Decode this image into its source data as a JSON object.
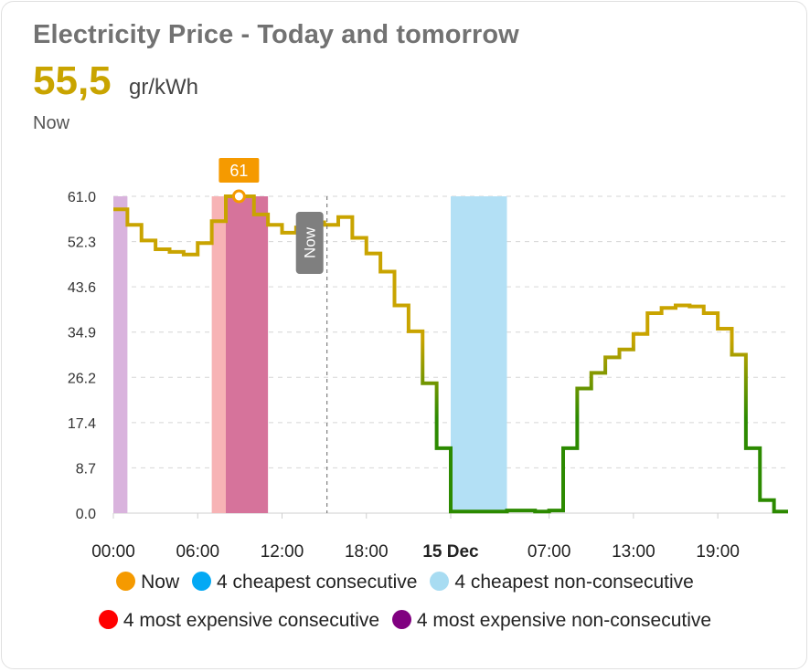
{
  "header": {
    "title": "Electricity Price - Today and tomorrow",
    "current_value": "55,5",
    "unit": "gr/kWh",
    "caption": "Now"
  },
  "chart_data": {
    "type": "line",
    "step": true,
    "title": "Electricity Price - Today and tomorrow",
    "ylim": [
      0,
      61
    ],
    "y_ticks": [
      "61.0",
      "52.3",
      "43.6",
      "34.9",
      "26.2",
      "17.4",
      "8.7",
      "0.0"
    ],
    "x_ticks": [
      "00:00",
      "06:00",
      "12:00",
      "18:00",
      "15 Dec",
      "07:00",
      "13:00",
      "19:00"
    ],
    "hours": 48,
    "series": [
      {
        "values": [
          58.5,
          55.5,
          52.5,
          50.8,
          50.3,
          49.8,
          52.0,
          56.2,
          61.0,
          61.0,
          57.5,
          55.5,
          54.0,
          55.0,
          56.0,
          55.5,
          57.0,
          53.0,
          50.0,
          46.5,
          40.0,
          35.0,
          25.0,
          12.5,
          0.3,
          0.3,
          0.3,
          0.3,
          0.5,
          0.5,
          0.3,
          0.5,
          12.5,
          24.0,
          27.0,
          30.0,
          31.5,
          34.5,
          38.5,
          39.5,
          40.0,
          39.8,
          38.5,
          35.5,
          30.5,
          12.5,
          2.5,
          0.3
        ]
      }
    ],
    "max_label": "61",
    "now_label": "Now",
    "now_hour": 15.2,
    "max_hour": 9.0,
    "highlights": [
      {
        "type": "most expensive non-consecutive",
        "start": 0,
        "end": 1,
        "color": "#d9b3dd"
      },
      {
        "type": "most expensive consecutive",
        "start": 7,
        "end": 8,
        "color": "#f7b3b5"
      },
      {
        "type": "most expensive combined",
        "start": 8,
        "end": 11,
        "color": "#d6739b"
      },
      {
        "type": "cheapest non-consecutive",
        "start": 24,
        "end": 28,
        "color": "#b3e0f5"
      }
    ],
    "colors": {
      "line_high": "#c9a400",
      "line_low": "#2c8a00",
      "max_marker": "#f59a00",
      "now_marker": "#7f7f7f"
    }
  },
  "legend": [
    {
      "label": "Now",
      "color": "#f59a00"
    },
    {
      "label": "4 cheapest consecutive",
      "color": "#03a9f4"
    },
    {
      "label": "4 cheapest non-consecutive",
      "color": "#a8dcf2"
    },
    {
      "label": "4 most expensive consecutive",
      "color": "#ff0000"
    },
    {
      "label": "4 most expensive non-consecutive",
      "color": "#800080"
    }
  ]
}
